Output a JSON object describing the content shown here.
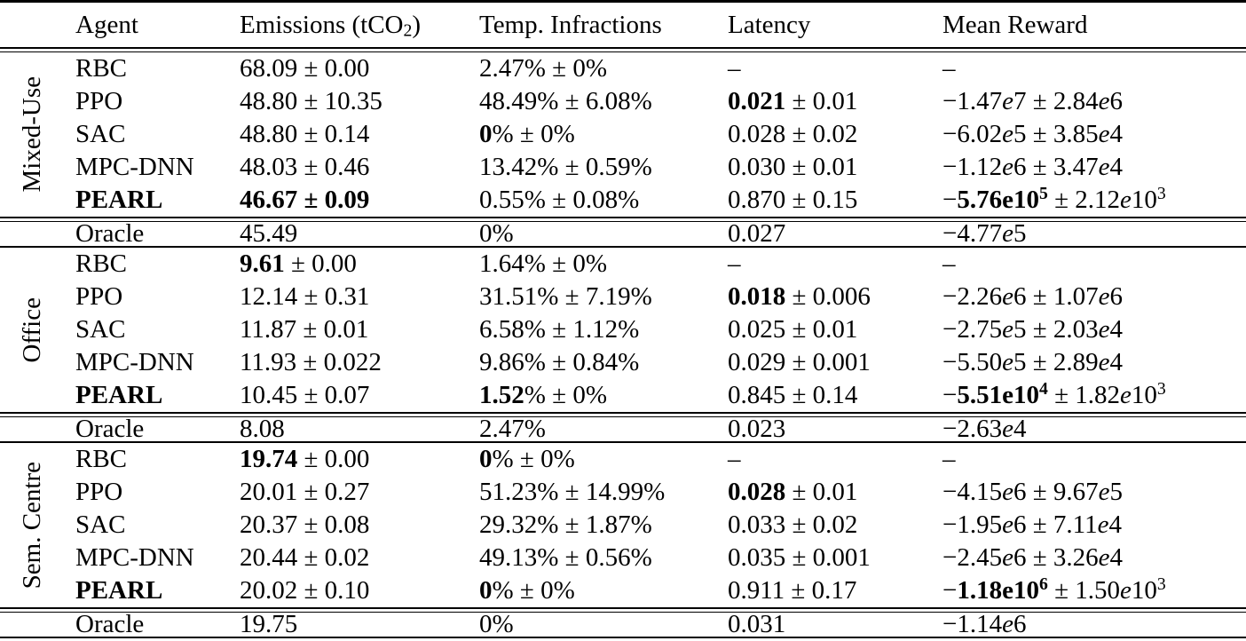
{
  "colors": {
    "background": "#ffffff",
    "text": "#000000",
    "rule": "#000000"
  },
  "table": {
    "headers": [
      [
        {
          "t": "Agent"
        }
      ],
      [
        {
          "t": "Emissions (tCO"
        },
        {
          "t": "2",
          "sub": true
        },
        {
          "t": ")"
        }
      ],
      [
        {
          "t": "Temp. Infractions"
        }
      ],
      [
        {
          "t": "Latency"
        }
      ],
      [
        {
          "t": "Mean Reward"
        }
      ]
    ],
    "sections": [
      {
        "label": "Mixed-Use",
        "rows": [
          {
            "agent": [
              {
                "t": "RBC"
              }
            ],
            "emissions": [
              {
                "t": "68.09 ± 0.00"
              }
            ],
            "temp": [
              {
                "t": "2.47% ± 0%"
              }
            ],
            "latency": [
              {
                "t": "–"
              }
            ],
            "reward": [
              {
                "t": "–"
              }
            ]
          },
          {
            "agent": [
              {
                "t": "PPO"
              }
            ],
            "emissions": [
              {
                "t": "48.80 ± 10.35"
              }
            ],
            "temp": [
              {
                "t": "48.49% ± 6.08%"
              }
            ],
            "latency": [
              {
                "t": "0.021",
                "b": true
              },
              {
                "t": " ± 0.01"
              }
            ],
            "reward": [
              {
                "t": "−1.47"
              },
              {
                "t": "e",
                "i": true
              },
              {
                "t": "7 ± 2.84"
              },
              {
                "t": "e",
                "i": true
              },
              {
                "t": "6"
              }
            ]
          },
          {
            "agent": [
              {
                "t": "SAC"
              }
            ],
            "emissions": [
              {
                "t": "48.80 ± 0.14"
              }
            ],
            "temp": [
              {
                "t": "0",
                "b": true
              },
              {
                "t": "% ± 0%"
              }
            ],
            "latency": [
              {
                "t": "0.028 ± 0.02"
              }
            ],
            "reward": [
              {
                "t": "−6.02"
              },
              {
                "t": "e",
                "i": true
              },
              {
                "t": "5 ± 3.85"
              },
              {
                "t": "e",
                "i": true
              },
              {
                "t": "4"
              }
            ]
          },
          {
            "agent": [
              {
                "t": "MPC-DNN"
              }
            ],
            "emissions": [
              {
                "t": "48.03 ± 0.46"
              }
            ],
            "temp": [
              {
                "t": "13.42% ± 0.59%"
              }
            ],
            "latency": [
              {
                "t": "0.030 ± 0.01"
              }
            ],
            "reward": [
              {
                "t": "−1.12"
              },
              {
                "t": "e",
                "i": true
              },
              {
                "t": "6 ± 3.47"
              },
              {
                "t": "e",
                "i": true
              },
              {
                "t": "4"
              }
            ]
          },
          {
            "agent": [
              {
                "t": "PEARL",
                "b": true
              }
            ],
            "emissions": [
              {
                "t": "46.67 ± 0.09",
                "b": true
              }
            ],
            "temp": [
              {
                "t": "0.55% ± 0.08%"
              }
            ],
            "latency": [
              {
                "t": "0.870 ± 0.15"
              }
            ],
            "reward": [
              {
                "t": "−"
              },
              {
                "t": "5.76e10",
                "b": true
              },
              {
                "t": "5",
                "b": true,
                "sup": true
              },
              {
                "t": " ± 2.12"
              },
              {
                "t": "e",
                "i": true
              },
              {
                "t": "10"
              },
              {
                "t": "3",
                "sup": true
              }
            ]
          }
        ],
        "oracle": {
          "agent": [
            {
              "t": "Oracle"
            }
          ],
          "emissions": [
            {
              "t": "45.49"
            }
          ],
          "temp": [
            {
              "t": "0%"
            }
          ],
          "latency": [
            {
              "t": "0.027"
            }
          ],
          "reward": [
            {
              "t": "−4.77"
            },
            {
              "t": "e",
              "i": true
            },
            {
              "t": "5"
            }
          ]
        }
      },
      {
        "label": "Office",
        "rows": [
          {
            "agent": [
              {
                "t": "RBC"
              }
            ],
            "emissions": [
              {
                "t": "9.61",
                "b": true
              },
              {
                "t": " ± 0.00"
              }
            ],
            "temp": [
              {
                "t": "1.64% ± 0%"
              }
            ],
            "latency": [
              {
                "t": "–"
              }
            ],
            "reward": [
              {
                "t": "–"
              }
            ]
          },
          {
            "agent": [
              {
                "t": "PPO"
              }
            ],
            "emissions": [
              {
                "t": "12.14 ± 0.31"
              }
            ],
            "temp": [
              {
                "t": "31.51% ± 7.19%"
              }
            ],
            "latency": [
              {
                "t": "0.018",
                "b": true
              },
              {
                "t": " ± 0.006"
              }
            ],
            "reward": [
              {
                "t": "−2.26"
              },
              {
                "t": "e",
                "i": true
              },
              {
                "t": "6 ± 1.07"
              },
              {
                "t": "e",
                "i": true
              },
              {
                "t": "6"
              }
            ]
          },
          {
            "agent": [
              {
                "t": "SAC"
              }
            ],
            "emissions": [
              {
                "t": "11.87 ± 0.01"
              }
            ],
            "temp": [
              {
                "t": "6.58% ± 1.12%"
              }
            ],
            "latency": [
              {
                "t": "0.025 ± 0.01"
              }
            ],
            "reward": [
              {
                "t": "−2.75"
              },
              {
                "t": "e",
                "i": true
              },
              {
                "t": "5 ± 2.03"
              },
              {
                "t": "e",
                "i": true
              },
              {
                "t": "4"
              }
            ]
          },
          {
            "agent": [
              {
                "t": "MPC-DNN"
              }
            ],
            "emissions": [
              {
                "t": "11.93 ± 0.022"
              }
            ],
            "temp": [
              {
                "t": "9.86% ± 0.84%"
              }
            ],
            "latency": [
              {
                "t": "0.029 ± 0.001"
              }
            ],
            "reward": [
              {
                "t": "−5.50"
              },
              {
                "t": "e",
                "i": true
              },
              {
                "t": "5 ± 2.89"
              },
              {
                "t": "e",
                "i": true
              },
              {
                "t": "4"
              }
            ]
          },
          {
            "agent": [
              {
                "t": "PEARL",
                "b": true
              }
            ],
            "emissions": [
              {
                "t": "10.45 ± 0.07"
              }
            ],
            "temp": [
              {
                "t": "1.52",
                "b": true
              },
              {
                "t": "% ± 0%"
              }
            ],
            "latency": [
              {
                "t": "0.845 ± 0.14"
              }
            ],
            "reward": [
              {
                "t": "−"
              },
              {
                "t": "5.51e10",
                "b": true
              },
              {
                "t": "4",
                "b": true,
                "sup": true
              },
              {
                "t": " ± 1.82"
              },
              {
                "t": "e",
                "i": true
              },
              {
                "t": "10"
              },
              {
                "t": "3",
                "sup": true
              }
            ]
          }
        ],
        "oracle": {
          "agent": [
            {
              "t": "Oracle"
            }
          ],
          "emissions": [
            {
              "t": "8.08"
            }
          ],
          "temp": [
            {
              "t": "2.47%"
            }
          ],
          "latency": [
            {
              "t": "0.023"
            }
          ],
          "reward": [
            {
              "t": "−2.63"
            },
            {
              "t": "e",
              "i": true
            },
            {
              "t": "4"
            }
          ]
        }
      },
      {
        "label": "Sem. Centre",
        "rows": [
          {
            "agent": [
              {
                "t": "RBC"
              }
            ],
            "emissions": [
              {
                "t": "19.74",
                "b": true
              },
              {
                "t": " ± 0.00"
              }
            ],
            "temp": [
              {
                "t": "0",
                "b": true
              },
              {
                "t": "% ± 0%"
              }
            ],
            "latency": [
              {
                "t": "–"
              }
            ],
            "reward": [
              {
                "t": "–"
              }
            ]
          },
          {
            "agent": [
              {
                "t": "PPO"
              }
            ],
            "emissions": [
              {
                "t": "20.01 ± 0.27"
              }
            ],
            "temp": [
              {
                "t": "51.23% ± 14.99%"
              }
            ],
            "latency": [
              {
                "t": "0.028",
                "b": true
              },
              {
                "t": " ± 0.01"
              }
            ],
            "reward": [
              {
                "t": "−4.15"
              },
              {
                "t": "e",
                "i": true
              },
              {
                "t": "6 ± 9.67"
              },
              {
                "t": "e",
                "i": true
              },
              {
                "t": "5"
              }
            ]
          },
          {
            "agent": [
              {
                "t": "SAC"
              }
            ],
            "emissions": [
              {
                "t": "20.37 ± 0.08"
              }
            ],
            "temp": [
              {
                "t": "29.32% ± 1.87%"
              }
            ],
            "latency": [
              {
                "t": "0.033 ± 0.02"
              }
            ],
            "reward": [
              {
                "t": "−1.95"
              },
              {
                "t": "e",
                "i": true
              },
              {
                "t": "6 ± 7.11"
              },
              {
                "t": "e",
                "i": true
              },
              {
                "t": "4"
              }
            ]
          },
          {
            "agent": [
              {
                "t": "MPC-DNN"
              }
            ],
            "emissions": [
              {
                "t": "20.44 ± 0.02"
              }
            ],
            "temp": [
              {
                "t": "49.13% ± 0.56%"
              }
            ],
            "latency": [
              {
                "t": "0.035 ± 0.001"
              }
            ],
            "reward": [
              {
                "t": "−2.45"
              },
              {
                "t": "e",
                "i": true
              },
              {
                "t": "6 ± 3.26"
              },
              {
                "t": "e",
                "i": true
              },
              {
                "t": "4"
              }
            ]
          },
          {
            "agent": [
              {
                "t": "PEARL",
                "b": true
              }
            ],
            "emissions": [
              {
                "t": "20.02 ± 0.10"
              }
            ],
            "temp": [
              {
                "t": "0",
                "b": true
              },
              {
                "t": "% ± 0%"
              }
            ],
            "latency": [
              {
                "t": "0.911 ± 0.17"
              }
            ],
            "reward": [
              {
                "t": "−"
              },
              {
                "t": "1.18e10",
                "b": true
              },
              {
                "t": "6",
                "b": true,
                "sup": true
              },
              {
                "t": " ± 1.50"
              },
              {
                "t": "e",
                "i": true
              },
              {
                "t": "10"
              },
              {
                "t": "3",
                "sup": true
              }
            ]
          }
        ],
        "oracle": {
          "agent": [
            {
              "t": "Oracle"
            }
          ],
          "emissions": [
            {
              "t": "19.75"
            }
          ],
          "temp": [
            {
              "t": "0%"
            }
          ],
          "latency": [
            {
              "t": "0.031"
            }
          ],
          "reward": [
            {
              "t": "−1.14"
            },
            {
              "t": "e",
              "i": true
            },
            {
              "t": "6"
            }
          ]
        }
      }
    ]
  }
}
